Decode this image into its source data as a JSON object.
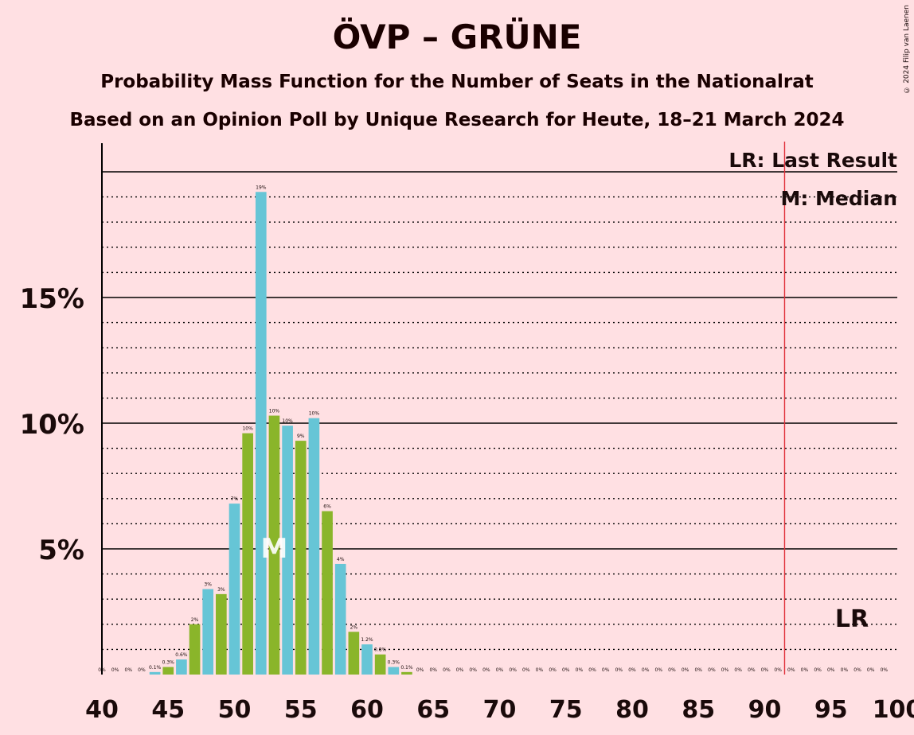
{
  "title": "ÖVP – GRÜNE",
  "subtitle": "Probability Mass Function for the Number of Seats in the Nationalrat",
  "subtitle2": "Based on an Opinion Poll by Unique Research for Heute, 18–21 March 2024",
  "copyright": "© 2024 Filip van Laenen",
  "legend": {
    "last_result": "LR: Last Result",
    "median": "M: Median"
  },
  "colors": {
    "background": "#ffe0e3",
    "bar_blue": "#66c5d6",
    "bar_green": "#8ab52a",
    "last_result_line": "#e0303a"
  },
  "chart_data": {
    "type": "bar",
    "xlim": [
      40,
      100
    ],
    "ylim": [
      0,
      20
    ],
    "x_ticks": [
      "40",
      "45",
      "50",
      "55",
      "60",
      "65",
      "70",
      "75",
      "80",
      "85",
      "90",
      "95",
      "100"
    ],
    "y_ticks": [
      "5%",
      "10%",
      "15%"
    ],
    "grid": true,
    "median": 53,
    "median_label": "M",
    "last_result": 92,
    "last_result_label": "LR",
    "bars": [
      {
        "x": 40,
        "value": 0,
        "label": "0%"
      },
      {
        "x": 41,
        "value": 0,
        "label": "0%"
      },
      {
        "x": 42,
        "value": 0,
        "label": "0%"
      },
      {
        "x": 43,
        "value": 0,
        "label": "0%"
      },
      {
        "x": 44,
        "value": 0.1,
        "label": "0.1%"
      },
      {
        "x": 45,
        "value": 0.3,
        "label": "0.3%"
      },
      {
        "x": 46,
        "value": 0.6,
        "label": "0.6%"
      },
      {
        "x": 47,
        "value": 2.0,
        "label": "2%"
      },
      {
        "x": 48,
        "value": 3.4,
        "label": "3%"
      },
      {
        "x": 49,
        "value": 3.2,
        "label": "3%"
      },
      {
        "x": 50,
        "value": 6.8,
        "label": "7%"
      },
      {
        "x": 51,
        "value": 9.6,
        "label": "10%"
      },
      {
        "x": 52,
        "value": 19.2,
        "label": "19%"
      },
      {
        "x": 53,
        "value": 10.3,
        "label": "10%"
      },
      {
        "x": 54,
        "value": 9.9,
        "label": "10%"
      },
      {
        "x": 55,
        "value": 9.3,
        "label": "9%"
      },
      {
        "x": 56,
        "value": 10.2,
        "label": "10%"
      },
      {
        "x": 57,
        "value": 6.5,
        "label": "6%"
      },
      {
        "x": 58,
        "value": 4.4,
        "label": "4%"
      },
      {
        "x": 59,
        "value": 1.7,
        "label": "2%"
      },
      {
        "x": 60,
        "value": 1.2,
        "label": "1.2%"
      },
      {
        "x": 61,
        "value": 0.8,
        "label": "0.8%"
      },
      {
        "x": 62,
        "value": 0.3,
        "label": "0.3%"
      },
      {
        "x": 63,
        "value": 0.1,
        "label": "0.1%"
      },
      {
        "x": 64,
        "value": 0,
        "label": "0%"
      },
      {
        "x": 65,
        "value": 0,
        "label": "0%"
      },
      {
        "x": 66,
        "value": 0,
        "label": "0%"
      },
      {
        "x": 67,
        "value": 0,
        "label": "0%"
      },
      {
        "x": 68,
        "value": 0,
        "label": "0%"
      },
      {
        "x": 69,
        "value": 0,
        "label": "0%"
      },
      {
        "x": 70,
        "value": 0,
        "label": "0%"
      },
      {
        "x": 71,
        "value": 0,
        "label": "0%"
      },
      {
        "x": 72,
        "value": 0,
        "label": "0%"
      },
      {
        "x": 73,
        "value": 0,
        "label": "0%"
      },
      {
        "x": 74,
        "value": 0,
        "label": "0%"
      },
      {
        "x": 75,
        "value": 0,
        "label": "0%"
      },
      {
        "x": 76,
        "value": 0,
        "label": "0%"
      },
      {
        "x": 77,
        "value": 0,
        "label": "0%"
      },
      {
        "x": 78,
        "value": 0,
        "label": "0%"
      },
      {
        "x": 79,
        "value": 0,
        "label": "0%"
      },
      {
        "x": 80,
        "value": 0,
        "label": "0%"
      },
      {
        "x": 81,
        "value": 0,
        "label": "0%"
      },
      {
        "x": 82,
        "value": 0,
        "label": "0%"
      },
      {
        "x": 83,
        "value": 0,
        "label": "0%"
      },
      {
        "x": 84,
        "value": 0,
        "label": "0%"
      },
      {
        "x": 85,
        "value": 0,
        "label": "0%"
      },
      {
        "x": 86,
        "value": 0,
        "label": "0%"
      },
      {
        "x": 87,
        "value": 0,
        "label": "0%"
      },
      {
        "x": 88,
        "value": 0,
        "label": "0%"
      },
      {
        "x": 89,
        "value": 0,
        "label": "0%"
      },
      {
        "x": 90,
        "value": 0,
        "label": "0%"
      },
      {
        "x": 91,
        "value": 0,
        "label": "0%"
      },
      {
        "x": 92,
        "value": 0,
        "label": "0%"
      },
      {
        "x": 93,
        "value": 0,
        "label": "0%"
      },
      {
        "x": 94,
        "value": 0,
        "label": "0%"
      },
      {
        "x": 95,
        "value": 0,
        "label": "0%"
      },
      {
        "x": 96,
        "value": 0,
        "label": "0%"
      },
      {
        "x": 97,
        "value": 0,
        "label": "0%"
      },
      {
        "x": 98,
        "value": 0,
        "label": "0%"
      },
      {
        "x": 99,
        "value": 0,
        "label": "0%"
      }
    ]
  }
}
